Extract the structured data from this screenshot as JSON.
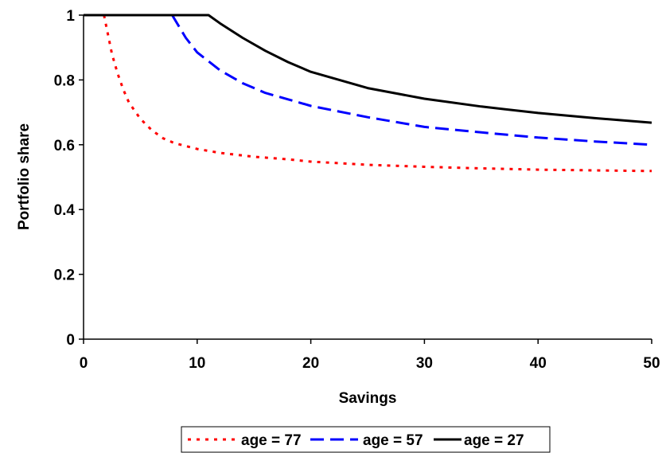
{
  "chart_data": {
    "type": "line",
    "xlabel": "Savings",
    "ylabel": "Portfolio share",
    "xlim": [
      0,
      50
    ],
    "ylim": [
      0,
      1
    ],
    "xticks": [
      0,
      10,
      20,
      30,
      40,
      50
    ],
    "yticks": [
      0,
      0.2,
      0.4,
      0.6,
      0.8,
      1
    ],
    "xtick_labels": [
      "0",
      "10",
      "20",
      "30",
      "40",
      "50"
    ],
    "ytick_labels": [
      "0",
      "0.2",
      "0.4",
      "0.6",
      "0.8",
      "1"
    ],
    "grid": false,
    "legend_position": "bottom",
    "series": [
      {
        "name": "age = 77",
        "color": "#ff0000",
        "dash": "dotted",
        "x": [
          1.8,
          2.5,
          3,
          3.5,
          4,
          5,
          6,
          7,
          8,
          10,
          12,
          15,
          18,
          20,
          25,
          30,
          35,
          40,
          45,
          50
        ],
        "y": [
          1.0,
          0.88,
          0.82,
          0.77,
          0.73,
          0.68,
          0.645,
          0.62,
          0.605,
          0.587,
          0.575,
          0.563,
          0.555,
          0.548,
          0.538,
          0.532,
          0.527,
          0.523,
          0.521,
          0.519
        ]
      },
      {
        "name": "age = 57",
        "color": "#0000ff",
        "dash": "dashed",
        "x": [
          7.8,
          9,
          10,
          12,
          14,
          16,
          18,
          20,
          25,
          30,
          35,
          40,
          45,
          50
        ],
        "y": [
          1.0,
          0.93,
          0.885,
          0.83,
          0.79,
          0.76,
          0.74,
          0.72,
          0.685,
          0.655,
          0.638,
          0.622,
          0.61,
          0.6
        ]
      },
      {
        "name": "age = 27",
        "color": "#000000",
        "dash": "solid",
        "x": [
          0,
          11,
          12,
          14,
          16,
          18,
          20,
          25,
          30,
          35,
          40,
          45,
          50
        ],
        "y": [
          1.0,
          1.0,
          0.975,
          0.93,
          0.89,
          0.855,
          0.825,
          0.775,
          0.742,
          0.718,
          0.698,
          0.682,
          0.668
        ]
      }
    ]
  }
}
